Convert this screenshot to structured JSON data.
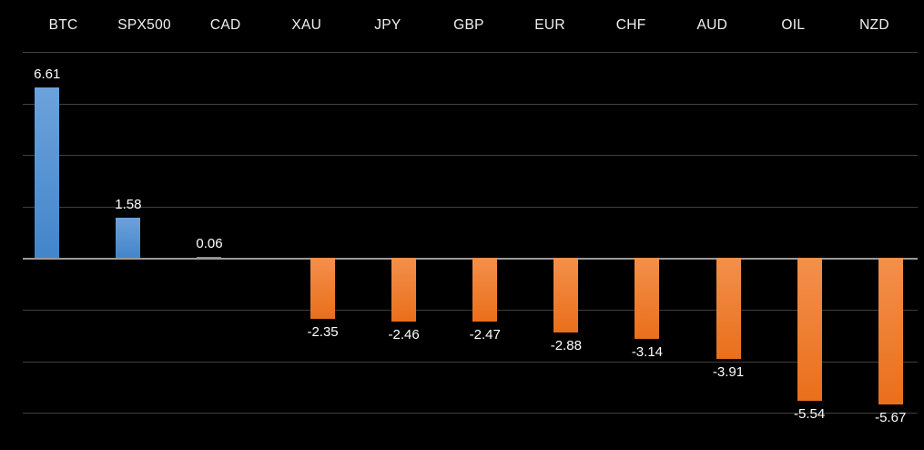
{
  "chart_data": {
    "type": "bar",
    "title": "",
    "xlabel": "",
    "ylabel": "",
    "categories": [
      "BTC",
      "SPX500",
      "CAD",
      "XAU",
      "JPY",
      "GBP",
      "EUR",
      "CHF",
      "AUD",
      "OIL",
      "NZD"
    ],
    "values": [
      6.61,
      1.58,
      0.06,
      -2.35,
      -2.46,
      -2.47,
      -2.88,
      -3.14,
      -3.91,
      -5.54,
      -5.67
    ],
    "value_labels": [
      "6.61",
      "1.58",
      "0.06",
      "-2.35",
      "-2.46",
      "-2.47",
      "-2.88",
      "-3.14",
      "-3.91",
      "-5.54",
      "-5.67"
    ],
    "ylim": [
      -6,
      8
    ],
    "gridline_step": 2,
    "grid": true,
    "legend": "none",
    "series_layout": "positive bars offset left of category center, negative bars offset right",
    "colors": {
      "background": "#000000",
      "positive_bar_top": "#6CA2DB",
      "positive_bar_bottom": "#4385CA",
      "negative_bar_top": "#F3904B",
      "negative_bar_bottom": "#E96F1B",
      "gridline": "#3F3F3F",
      "zero_line": "#9A9A9A",
      "header_label": "#F2F2F2",
      "value_label": "#FFFFFF"
    }
  }
}
